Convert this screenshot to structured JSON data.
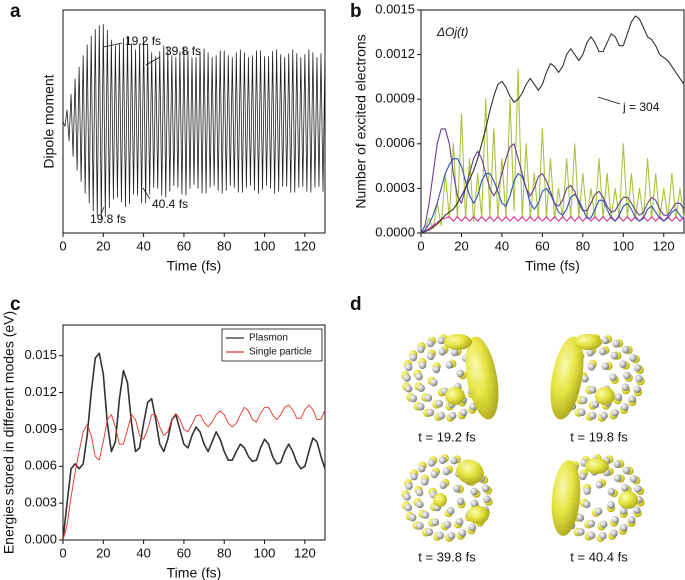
{
  "chart_data": [
    {
      "type": "line",
      "label": "a",
      "xlabel": "Time (fs)",
      "ylabel": "Dipole moment",
      "color": "#222222",
      "xlim": [
        0,
        130
      ],
      "xticks": [
        0,
        20,
        40,
        60,
        80,
        100,
        120
      ],
      "ylim": [
        -1.15,
        1.15
      ],
      "annotations": [
        "19.2 fs",
        "39.8 fs",
        "40.4 fs",
        "19.8 fs"
      ],
      "x": [
        0,
        1,
        2,
        3,
        4,
        5,
        6,
        7,
        8,
        9,
        10,
        11,
        12,
        13,
        14,
        15,
        16,
        17,
        18,
        19,
        20,
        21,
        22,
        23,
        24,
        25,
        26,
        27,
        28,
        29,
        30,
        31,
        32,
        33,
        34,
        35,
        36,
        37,
        38,
        39,
        40,
        41,
        42,
        43,
        44,
        45,
        46,
        47,
        48,
        49,
        50,
        51,
        52,
        53,
        54,
        55,
        56,
        57,
        58,
        59,
        60,
        61,
        62,
        63,
        64,
        65,
        66,
        67,
        68,
        69,
        70,
        71,
        72,
        73,
        74,
        75,
        76,
        77,
        78,
        79,
        80,
        81,
        82,
        83,
        84,
        85,
        86,
        87,
        88,
        89,
        90,
        91,
        92,
        93,
        94,
        95,
        96,
        97,
        98,
        99,
        100,
        101,
        102,
        103,
        104,
        105,
        106,
        107,
        108,
        109,
        110,
        111,
        112,
        113,
        114,
        115,
        116,
        117,
        118,
        119,
        120,
        121,
        122,
        123,
        124,
        125,
        126,
        127,
        128,
        129,
        130
      ],
      "values": [
        0,
        -0.05,
        0.12,
        -0.2,
        0.28,
        -0.36,
        0.44,
        -0.5,
        0.56,
        -0.62,
        0.68,
        -0.74,
        0.79,
        -0.84,
        0.88,
        -0.92,
        0.95,
        -0.97,
        0.99,
        -1.0,
        1.0,
        -0.98,
        0.94,
        -0.89,
        0.84,
        -0.8,
        0.78,
        -0.78,
        0.8,
        -0.83,
        0.86,
        -0.88,
        0.88,
        -0.85,
        0.8,
        -0.75,
        0.74,
        -0.76,
        0.8,
        -0.84,
        0.86,
        -0.84,
        0.8,
        -0.75,
        0.71,
        -0.68,
        0.67,
        -0.69,
        0.72,
        -0.76,
        0.78,
        -0.78,
        0.76,
        -0.72,
        0.68,
        -0.66,
        0.66,
        -0.68,
        0.72,
        -0.75,
        0.77,
        -0.76,
        0.73,
        -0.69,
        0.66,
        -0.65,
        0.66,
        -0.69,
        0.72,
        -0.74,
        0.75,
        -0.74,
        0.71,
        -0.68,
        0.66,
        -0.66,
        0.68,
        -0.71,
        0.73,
        -0.74,
        0.73,
        -0.71,
        0.68,
        -0.66,
        0.66,
        -0.68,
        0.71,
        -0.73,
        0.74,
        -0.73,
        0.71,
        -0.68,
        0.66,
        -0.66,
        0.68,
        -0.71,
        0.73,
        -0.74,
        0.73,
        -0.7,
        0.67,
        -0.66,
        0.67,
        -0.69,
        0.72,
        -0.74,
        0.74,
        -0.72,
        0.69,
        -0.67,
        0.66,
        -0.67,
        0.7,
        -0.73,
        0.74,
        -0.73,
        0.7,
        -0.68,
        0.66,
        -0.67,
        0.69,
        -0.72,
        0.74,
        -0.73,
        0.71,
        -0.68,
        0.66,
        -0.67,
        0.7,
        -0.72,
        0.73
      ]
    },
    {
      "type": "line",
      "label": "b",
      "xlabel": "Time (fs)",
      "ylabel": "Number of excited electrons",
      "xlim": [
        0,
        130
      ],
      "xticks": [
        0,
        20,
        40,
        60,
        80,
        100,
        120
      ],
      "ylim": [
        0,
        0.0015
      ],
      "yticks": [
        {
          "value": 0,
          "label": "0.0000"
        },
        {
          "value": 0.0003,
          "label": "0.0003"
        },
        {
          "value": 0.0006,
          "label": "0.0006"
        },
        {
          "value": 0.0009,
          "label": "0.0009"
        },
        {
          "value": 0.0012,
          "label": "0.0012"
        },
        {
          "value": 0.0015,
          "label": "0.0015"
        }
      ],
      "annotations": [
        "ΔOj(t)",
        "j = 304"
      ],
      "x": [
        0,
        2,
        4,
        6,
        8,
        10,
        12,
        14,
        16,
        18,
        20,
        22,
        24,
        26,
        28,
        30,
        32,
        34,
        36,
        38,
        40,
        42,
        44,
        46,
        48,
        50,
        52,
        54,
        56,
        58,
        60,
        62,
        64,
        66,
        68,
        70,
        72,
        74,
        76,
        78,
        80,
        82,
        84,
        86,
        88,
        90,
        92,
        94,
        96,
        98,
        100,
        102,
        104,
        106,
        108,
        110,
        112,
        114,
        116,
        118,
        120,
        122,
        124,
        126,
        128,
        130
      ],
      "series": [
        {
          "color": "#a9c43c",
          "values": [
            0,
            2e-05,
            0.0001,
            3e-05,
            0.0002,
            5e-05,
            0.0004,
            0.0001,
            0.0006,
            0.0001,
            0.0008,
            0.0001,
            0.0005,
            8e-05,
            0.0004,
            0.0001,
            0.0009,
            0.0001,
            0.0007,
            0.0001,
            0.0005,
            0.0001,
            0.0009,
            0.00015,
            0.0011,
            0.0001,
            0.0006,
            0.0001,
            0.0004,
            0.0001,
            0.0007,
            0.0001,
            0.0005,
            0.0001,
            0.0003,
            0.0001,
            0.0005,
            0.0001,
            0.0006,
            0.0001,
            0.0004,
            0.0001,
            0.0003,
            0.0001,
            0.0005,
            0.0001,
            0.0004,
            0.0001,
            0.0003,
            0.0001,
            0.0006,
            0.0001,
            0.0004,
            0.0001,
            0.0003,
            0.0001,
            0.0005,
            0.0001,
            0.0004,
            0.0001,
            0.0003,
            0.0001,
            0.0004,
            0.0001,
            0.0003,
            0.0001
          ]
        },
        {
          "color": "#e0309a",
          "values": [
            0,
            1e-05,
            3e-05,
            5e-05,
            7e-05,
            9e-05,
            0.0001,
            0.00011,
            8e-05,
            0.00011,
            8e-05,
            0.00011,
            8e-05,
            0.00011,
            8e-05,
            0.00011,
            8e-05,
            0.00011,
            8e-05,
            0.00011,
            8e-05,
            0.00011,
            8e-05,
            0.00011,
            8e-05,
            0.00011,
            8e-05,
            0.00011,
            8e-05,
            0.00011,
            8e-05,
            0.00011,
            8e-05,
            0.00011,
            8e-05,
            0.00011,
            8e-05,
            0.00011,
            8e-05,
            0.00011,
            8e-05,
            0.00011,
            8e-05,
            0.00011,
            8e-05,
            0.00011,
            8e-05,
            0.00011,
            8e-05,
            0.00011,
            8e-05,
            0.00011,
            8e-05,
            0.00011,
            8e-05,
            0.00011,
            8e-05,
            0.00011,
            8e-05,
            0.00011,
            8e-05,
            0.00011,
            8e-05,
            0.00011,
            8e-05,
            0.00011
          ]
        },
        {
          "color": "#3050c0",
          "values": [
            0,
            2e-05,
            6e-05,
            0.00012,
            0.0002,
            0.0003,
            0.0004,
            0.00046,
            0.0005,
            0.0005,
            0.00045,
            0.00035,
            0.00025,
            0.0002,
            0.00025,
            0.00035,
            0.0004,
            0.0004,
            0.00035,
            0.00028,
            0.0002,
            0.00018,
            0.00025,
            0.00035,
            0.0004,
            0.00038,
            0.0003,
            0.0002,
            0.00016,
            0.0002,
            0.00028,
            0.0003,
            0.00026,
            0.0002,
            0.00014,
            0.00012,
            0.00016,
            0.00024,
            0.00026,
            0.00022,
            0.00016,
            0.0001,
            0.0001,
            0.00016,
            0.00022,
            0.00022,
            0.00016,
            0.0001,
            8e-05,
            0.00012,
            0.00018,
            0.0002,
            0.00016,
            0.0001,
            8e-05,
            0.0001,
            0.00016,
            0.00018,
            0.00014,
            0.0001,
            8e-05,
            0.0001,
            0.00014,
            0.00016,
            0.00012,
            9e-05
          ]
        },
        {
          "color": "#6a3d9a",
          "values": [
            0,
            5e-05,
            0.0002,
            0.0004,
            0.0006,
            0.0007,
            0.0007,
            0.0006,
            0.0004,
            0.00025,
            0.0002,
            0.0003,
            0.0004,
            0.0005,
            0.00055,
            0.0005,
            0.0004,
            0.0003,
            0.00025,
            0.0003,
            0.0004,
            0.0005,
            0.00058,
            0.0006,
            0.0005,
            0.0004,
            0.0003,
            0.00025,
            0.0003,
            0.00038,
            0.0004,
            0.00035,
            0.00028,
            0.0002,
            0.00018,
            0.00022,
            0.0003,
            0.00032,
            0.00028,
            0.0002,
            0.00015,
            0.00015,
            0.0002,
            0.00026,
            0.00028,
            0.00024,
            0.00018,
            0.00014,
            0.00015,
            0.0002,
            0.00024,
            0.00024,
            0.0002,
            0.00015,
            0.00012,
            0.00014,
            0.0002,
            0.00024,
            0.00022,
            0.00016,
            0.00012,
            0.00012,
            0.00016,
            0.0002,
            0.0002,
            0.00016
          ]
        },
        {
          "color": "#333333",
          "values": [
            0,
            1e-05,
            2e-05,
            4e-05,
            6e-05,
            9e-05,
            0.00012,
            0.00014,
            0.00016,
            0.0002,
            0.00025,
            0.0003,
            0.00036,
            0.00042,
            0.0005,
            0.0006,
            0.0007,
            0.00082,
            0.00092,
            0.001,
            0.00102,
            0.00098,
            0.00092,
            0.00088,
            0.0009,
            0.00094,
            0.001,
            0.00104,
            0.001,
            0.00096,
            0.001,
            0.00108,
            0.00114,
            0.00112,
            0.00108,
            0.00112,
            0.0012,
            0.00124,
            0.0012,
            0.00116,
            0.0012,
            0.00128,
            0.00132,
            0.00128,
            0.00122,
            0.00122,
            0.00128,
            0.00134,
            0.00132,
            0.00126,
            0.00126,
            0.00134,
            0.00142,
            0.00146,
            0.00144,
            0.00138,
            0.00132,
            0.0013,
            0.00126,
            0.0012,
            0.00118,
            0.00116,
            0.00112,
            0.00108,
            0.00104,
            0.001
          ]
        }
      ]
    },
    {
      "type": "line",
      "label": "c",
      "xlabel": "Time (fs)",
      "ylabel": "Energies stored in different modes (eV)",
      "xlim": [
        0,
        130
      ],
      "xticks": [
        0,
        20,
        40,
        60,
        80,
        100,
        120
      ],
      "ylim": [
        0,
        0.0175
      ],
      "yticks": [
        {
          "value": 0,
          "label": "0.000"
        },
        {
          "value": 0.003,
          "label": "0.003"
        },
        {
          "value": 0.006,
          "label": "0.006"
        },
        {
          "value": 0.009,
          "label": "0.009"
        },
        {
          "value": 0.012,
          "label": "0.012"
        },
        {
          "value": 0.015,
          "label": "0.015"
        }
      ],
      "legend": "upper right",
      "x": [
        0,
        2,
        4,
        6,
        8,
        10,
        12,
        14,
        16,
        18,
        20,
        22,
        24,
        26,
        28,
        30,
        32,
        34,
        36,
        38,
        40,
        42,
        44,
        46,
        48,
        50,
        52,
        54,
        56,
        58,
        60,
        62,
        64,
        66,
        68,
        70,
        72,
        74,
        76,
        78,
        80,
        82,
        84,
        86,
        88,
        90,
        92,
        94,
        96,
        98,
        100,
        102,
        104,
        106,
        108,
        110,
        112,
        114,
        116,
        118,
        120,
        122,
        124,
        126,
        128,
        130
      ],
      "series": [
        {
          "name": "Plasmon",
          "color": "#333333",
          "values": [
            0,
            0.003,
            0.0058,
            0.0062,
            0.0058,
            0.0062,
            0.0085,
            0.012,
            0.0148,
            0.0152,
            0.0135,
            0.0095,
            0.0072,
            0.008,
            0.0115,
            0.0138,
            0.0128,
            0.0095,
            0.0072,
            0.0075,
            0.0095,
            0.0112,
            0.0115,
            0.0098,
            0.0078,
            0.0072,
            0.0082,
            0.0098,
            0.0102,
            0.009,
            0.0078,
            0.0075,
            0.0085,
            0.0092,
            0.0088,
            0.0078,
            0.0072,
            0.008,
            0.0088,
            0.0082,
            0.0072,
            0.0065,
            0.0065,
            0.0072,
            0.0078,
            0.0075,
            0.0068,
            0.0064,
            0.0065,
            0.0075,
            0.0082,
            0.0078,
            0.0068,
            0.0062,
            0.0063,
            0.0072,
            0.0078,
            0.0072,
            0.0063,
            0.0058,
            0.006,
            0.0072,
            0.0083,
            0.008,
            0.0068,
            0.0058
          ]
        },
        {
          "name": "Single particle",
          "color": "#e8312a",
          "values": [
            0,
            0.0012,
            0.0035,
            0.0055,
            0.0072,
            0.0088,
            0.0094,
            0.0085,
            0.0068,
            0.0065,
            0.008,
            0.0098,
            0.0102,
            0.0092,
            0.0078,
            0.0078,
            0.009,
            0.0102,
            0.0098,
            0.0085,
            0.0082,
            0.009,
            0.0102,
            0.0102,
            0.0092,
            0.0085,
            0.0088,
            0.0098,
            0.0103,
            0.0098,
            0.009,
            0.0088,
            0.0094,
            0.0101,
            0.0102,
            0.0096,
            0.0092,
            0.0096,
            0.0102,
            0.0105,
            0.0102,
            0.0095,
            0.0092,
            0.0095,
            0.0102,
            0.0108,
            0.0105,
            0.0098,
            0.0096,
            0.0103,
            0.0108,
            0.0108,
            0.0102,
            0.0098,
            0.0102,
            0.0108,
            0.011,
            0.0106,
            0.0099,
            0.0099,
            0.0106,
            0.011,
            0.0106,
            0.0098,
            0.0098,
            0.0106
          ]
        }
      ]
    }
  ],
  "isosurfaces": {
    "label": "d",
    "captions": [
      "t = 19.2 fs",
      "t = 19.8 fs",
      "t = 39.8 fs",
      "t = 40.4 fs"
    ]
  }
}
